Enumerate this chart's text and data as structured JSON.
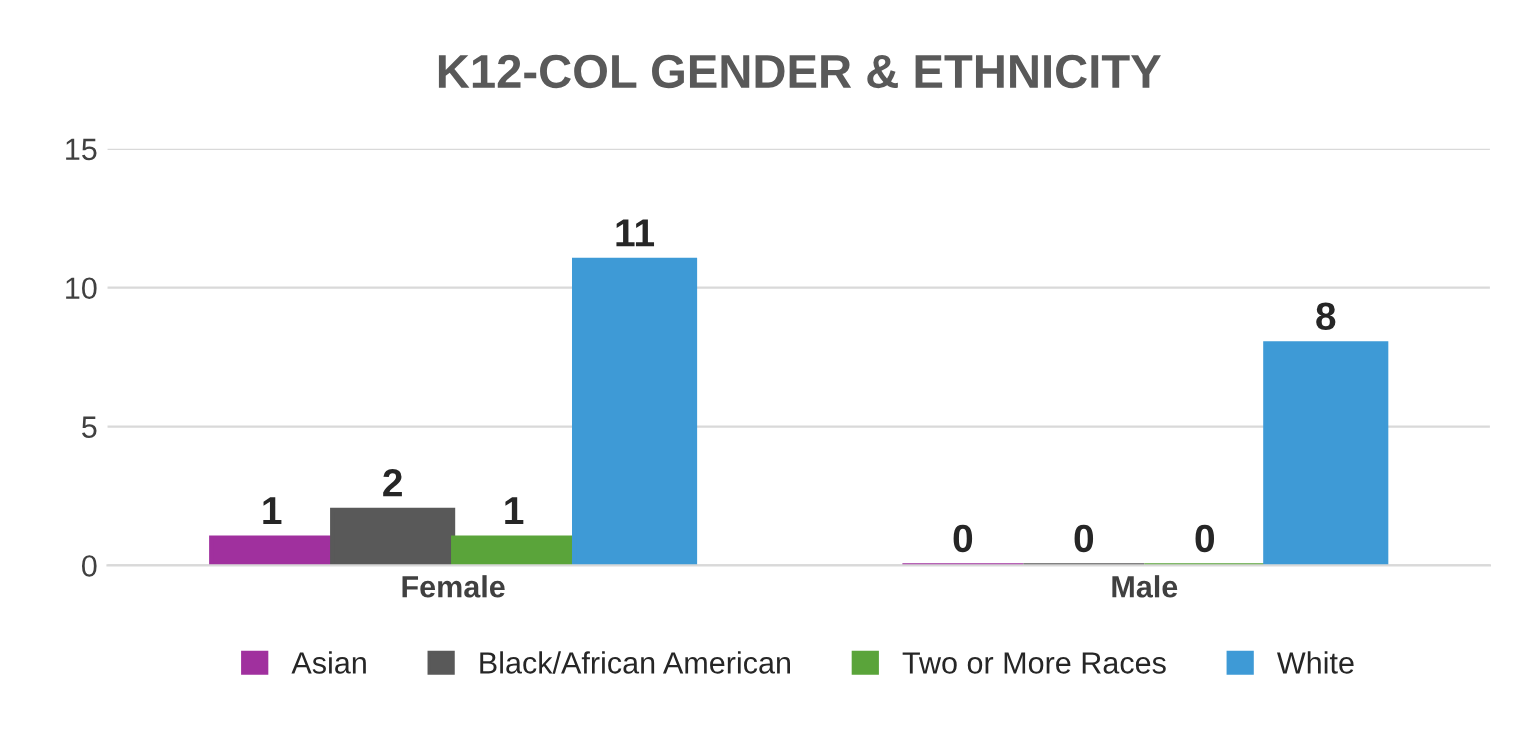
{
  "chart_data": {
    "type": "bar",
    "title": "K12-COL GENDER & ETHNICITY",
    "categories": [
      "Female",
      "Male"
    ],
    "series": [
      {
        "name": "Asian",
        "color": "#a0309e",
        "values": [
          1,
          0
        ]
      },
      {
        "name": "Black/African American",
        "color": "#595959",
        "values": [
          2,
          0
        ]
      },
      {
        "name": "Two or More Races",
        "color": "#5aa43a",
        "values": [
          1,
          0
        ]
      },
      {
        "name": "White",
        "color": "#3e9ad6",
        "values": [
          11,
          8
        ]
      }
    ],
    "ylim": [
      0,
      15
    ],
    "yticks": [
      0,
      5,
      10,
      15
    ],
    "grid": "y",
    "legend": "bottom",
    "data_labels": true
  }
}
